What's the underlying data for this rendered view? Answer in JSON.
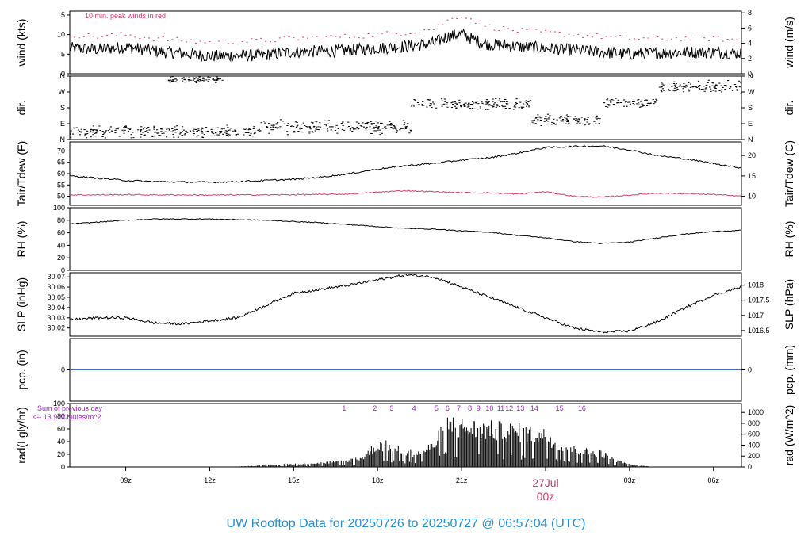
{
  "title": "UW Rooftop Data for 20250726  to  20250727 @ 06:57:04  (UTC)",
  "colors": {
    "title": "#2a8fd0",
    "peak": "#d0406a",
    "dewpoint": "#d0406a",
    "precip": "#4a6fc0",
    "rad_label": "#a020d0",
    "date_label": "#d0406a",
    "trace": "#000000"
  },
  "xaxis": {
    "range_hours": [
      7.0,
      31.0
    ],
    "ticks": [
      {
        "label": "09z",
        "hour": 9
      },
      {
        "label": "12z",
        "hour": 12
      },
      {
        "label": "15z",
        "hour": 15
      },
      {
        "label": "18z",
        "hour": 18
      },
      {
        "label": "21z",
        "hour": 21
      },
      {
        "label": "03z",
        "hour": 27
      },
      {
        "label": "06z",
        "hour": 30
      }
    ],
    "date_label": "27Jul",
    "date_sublabel": "00z",
    "date_hour": 24
  },
  "chart_data": [
    {
      "type": "line",
      "id": "wind",
      "ylabel": "wind (kts)",
      "ylabel_right": "wind (m/s)",
      "ylim": [
        0,
        16
      ],
      "yticks": [
        0,
        5,
        10,
        15
      ],
      "yticks_right": [
        {
          "label": "0",
          "at": 0
        },
        {
          "label": "2",
          "at": 3.89
        },
        {
          "label": "4",
          "at": 7.78
        },
        {
          "label": "6",
          "at": 11.66
        },
        {
          "label": "8",
          "at": 15.55
        }
      ],
      "annotation": "10 min. peak winds in red",
      "series": [
        {
          "role": "mean",
          "x": [
            7,
            8,
            9,
            10,
            11,
            12,
            13,
            14,
            15,
            16,
            17,
            18,
            19,
            20,
            20.5,
            21,
            21.5,
            22,
            23,
            24,
            25,
            26,
            27,
            28,
            29,
            30,
            31
          ],
          "y": [
            6.5,
            6.2,
            6.8,
            5.8,
            5.2,
            4.5,
            4.6,
            4.8,
            5.6,
            5.7,
            6.0,
            6.5,
            7.0,
            7.8,
            9.5,
            10.2,
            8.5,
            7.5,
            7.0,
            6.5,
            6.0,
            5.5,
            5.0,
            5.3,
            5.5,
            5.5,
            5.3
          ]
        },
        {
          "role": "peak",
          "x": [
            7,
            8,
            9,
            10,
            11,
            12,
            13,
            14,
            15,
            16,
            17,
            18,
            19,
            20,
            20.5,
            21,
            21.5,
            22,
            23,
            24,
            25,
            26,
            27,
            28,
            29,
            30,
            31
          ],
          "y": [
            10,
            9.5,
            10,
            9,
            8.5,
            8,
            8.2,
            8.5,
            9,
            9.3,
            9.5,
            10,
            10.5,
            11.5,
            13.5,
            15,
            13.5,
            12,
            11,
            10.5,
            10,
            9.5,
            9,
            9,
            9,
            9,
            8.5
          ]
        }
      ]
    },
    {
      "type": "scatter",
      "id": "dir",
      "ylabel": "dir.",
      "ylabel_right": "dir.",
      "ylim": [
        0,
        360
      ],
      "yticks_labeled": [
        {
          "label": "N",
          "at": 0
        },
        {
          "label": "E",
          "at": 90
        },
        {
          "label": "S",
          "at": 180
        },
        {
          "label": "W",
          "at": 270
        },
        {
          "label": "N",
          "at": 360
        }
      ],
      "clusters": [
        {
          "x_start": 7.0,
          "x_end": 13.8,
          "center": 45,
          "spread": 40
        },
        {
          "x_start": 10.5,
          "x_end": 12.5,
          "center": 340,
          "spread": 20
        },
        {
          "x_start": 13.8,
          "x_end": 19.2,
          "center": 70,
          "spread": 45
        },
        {
          "x_start": 19.2,
          "x_end": 23.5,
          "center": 200,
          "spread": 35
        },
        {
          "x_start": 23.5,
          "x_end": 24.5,
          "center": 110,
          "spread": 40
        },
        {
          "x_start": 24.5,
          "x_end": 26.0,
          "center": 110,
          "spread": 35
        },
        {
          "x_start": 26.0,
          "x_end": 28.0,
          "center": 210,
          "spread": 30
        },
        {
          "x_start": 28.0,
          "x_end": 31.0,
          "center": 300,
          "spread": 40
        }
      ]
    },
    {
      "type": "line",
      "id": "temp",
      "ylabel": "Tair/Tdew (F)",
      "ylabel_right": "Tair/Tdew (C)",
      "ylim": [
        46,
        74
      ],
      "yticks": [
        50,
        55,
        60,
        65,
        70
      ],
      "yticks_right": [
        {
          "label": "10",
          "at": 50
        },
        {
          "label": "15",
          "at": 59
        },
        {
          "label": "20",
          "at": 68
        }
      ],
      "series": [
        {
          "role": "air",
          "x": [
            7,
            8,
            9,
            10,
            11,
            12,
            13,
            14,
            15,
            16,
            17,
            18,
            19,
            20,
            21,
            22,
            23,
            24,
            25,
            26,
            27,
            28,
            29,
            30,
            31
          ],
          "y": [
            59,
            58,
            57,
            56.5,
            56.3,
            56.2,
            56.5,
            57,
            57.5,
            58.5,
            60,
            62,
            63.5,
            64.5,
            66,
            67,
            69,
            71.5,
            72,
            72.2,
            70.5,
            68,
            66.5,
            64.5,
            62.5
          ]
        },
        {
          "role": "dew",
          "x": [
            7,
            8,
            9,
            10,
            11,
            12,
            13,
            14,
            15,
            16,
            17,
            18,
            19,
            20,
            21,
            22,
            23,
            24,
            25,
            26,
            27,
            28,
            29,
            30,
            31
          ],
          "y": [
            50.6,
            50.6,
            50.7,
            50.6,
            50.6,
            50.5,
            50.6,
            50.6,
            50.7,
            50.8,
            51,
            51.8,
            52.5,
            52,
            51.6,
            51.5,
            51,
            52,
            50,
            49.6,
            50.5,
            51.4,
            51.2,
            50.8,
            50
          ]
        }
      ]
    },
    {
      "type": "line",
      "id": "rh",
      "ylabel": "RH (%)",
      "ylabel_right": "RH (%)",
      "ylim": [
        0,
        100
      ],
      "yticks": [
        0,
        20,
        40,
        60,
        80,
        100
      ],
      "series": [
        {
          "role": "rh",
          "x": [
            7,
            8,
            9,
            10,
            11,
            12,
            13,
            14,
            15,
            16,
            17,
            18,
            19,
            20,
            21,
            22,
            23,
            24,
            25,
            26,
            27,
            28,
            29,
            30,
            31
          ],
          "y": [
            74,
            77,
            80,
            82,
            82,
            82,
            81,
            80,
            78,
            76,
            73,
            70,
            67,
            66,
            63,
            61,
            56,
            52,
            46,
            43,
            45,
            52,
            58,
            62,
            64
          ]
        }
      ]
    },
    {
      "type": "line",
      "id": "slp",
      "ylabel": "SLP (inHg)",
      "ylabel_right": "SLP (hPa)",
      "ylim": [
        30.012,
        30.074
      ],
      "yticks": [
        30.02,
        30.03,
        30.04,
        30.05,
        30.06,
        30.07
      ],
      "yticks_right": [
        {
          "label": "1016.5",
          "at": 30.0175
        },
        {
          "label": "1017",
          "at": 30.0323
        },
        {
          "label": "1017.5",
          "at": 30.0471
        },
        {
          "label": "1018",
          "at": 30.0618
        }
      ],
      "series": [
        {
          "role": "slp",
          "x": [
            7,
            8,
            9,
            10,
            11,
            12,
            13,
            14,
            15,
            16,
            17,
            18,
            19,
            20,
            21,
            22,
            23,
            24,
            25,
            26,
            27,
            28,
            29,
            30,
            31
          ],
          "y": [
            30.028,
            30.03,
            30.03,
            30.025,
            30.024,
            30.027,
            30.03,
            30.042,
            30.054,
            30.058,
            30.062,
            30.067,
            30.072,
            30.07,
            30.06,
            30.05,
            30.04,
            30.03,
            30.02,
            30.016,
            30.017,
            30.026,
            30.04,
            30.052,
            30.06
          ]
        }
      ]
    },
    {
      "type": "line",
      "id": "pcp",
      "ylabel": "pcp. (in)",
      "ylabel_right": "pcp. (mm)",
      "ylim": [
        -1,
        1
      ],
      "yticks": [
        0
      ],
      "yticks_right": [
        {
          "label": "0",
          "at": 0
        }
      ],
      "series": [
        {
          "role": "pcp",
          "x": [
            7,
            31
          ],
          "y": [
            0,
            0
          ]
        }
      ]
    },
    {
      "type": "bar",
      "id": "rad",
      "ylabel": "rad(Lgly/hr)",
      "ylabel_right": "rad (W/m^2)",
      "ylim": [
        0,
        100
      ],
      "yticks": [
        0,
        20,
        40,
        60,
        80,
        100
      ],
      "yticks_right": [
        {
          "label": "0",
          "at": 0
        },
        {
          "label": "200",
          "at": 17.2
        },
        {
          "label": "400",
          "at": 34.4
        },
        {
          "label": "600",
          "at": 51.6
        },
        {
          "label": "800",
          "at": 68.8
        },
        {
          "label": "1000",
          "at": 86.0
        }
      ],
      "note_line1": "Sum of previous day",
      "note_line2": "<-- 13.9 MJoules/m^2",
      "envelope": {
        "x": [
          12.3,
          13,
          14,
          15,
          16,
          16.5,
          17,
          17.5,
          18,
          18.5,
          19,
          19.5,
          20,
          20.5,
          20.8,
          21,
          21.5,
          22,
          23,
          24,
          24.5,
          25,
          25.5,
          26,
          26.5,
          27,
          27.5,
          28
        ],
        "y": [
          0,
          1,
          3,
          6,
          8,
          10,
          13,
          20,
          45,
          40,
          30,
          28,
          42,
          88,
          80,
          78,
          76,
          74,
          70,
          62,
          45,
          35,
          30,
          28,
          12,
          5,
          2,
          0
        ]
      },
      "markers": [
        {
          "label": "1",
          "x": 16.8
        },
        {
          "label": "2",
          "x": 17.9
        },
        {
          "label": "3",
          "x": 18.5
        },
        {
          "label": "4",
          "x": 19.3
        },
        {
          "label": "5",
          "x": 20.1
        },
        {
          "label": "6",
          "x": 20.5
        },
        {
          "label": "7",
          "x": 20.9
        },
        {
          "label": "8",
          "x": 21.3
        },
        {
          "label": "9",
          "x": 21.6
        },
        {
          "label": "10",
          "x": 22.0
        },
        {
          "label": "11",
          "x": 22.4
        },
        {
          "label": "12",
          "x": 22.7
        },
        {
          "label": "13",
          "x": 23.1
        },
        {
          "label": "14",
          "x": 23.6
        },
        {
          "label": "15",
          "x": 24.5
        },
        {
          "label": "16",
          "x": 25.3
        }
      ]
    }
  ]
}
